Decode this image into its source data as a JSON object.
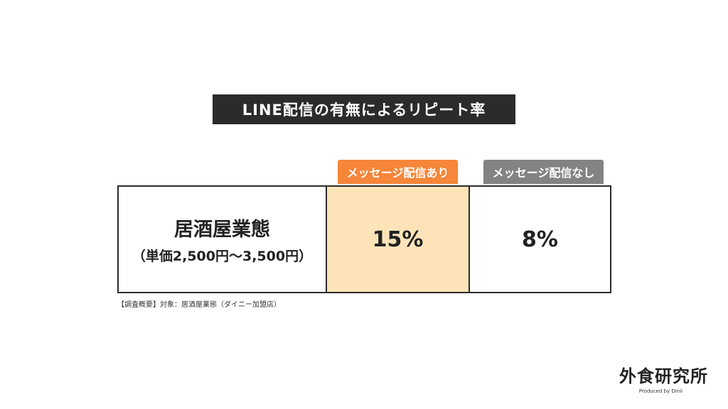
{
  "title": "LINE配信の有無によるリピート率",
  "columns": {
    "with": {
      "label": "メッセージ配信あり",
      "color": "#f5863a",
      "fill": "#fde4b8"
    },
    "without": {
      "label": "メッセージ配信なし",
      "color": "#838383",
      "fill": "#ffffff"
    }
  },
  "row": {
    "name": "居酒屋業態",
    "sub": "（単価2,500円～3,500円）",
    "with_value": "15%",
    "without_value": "8%"
  },
  "footnote": "【調査概要】対象：居酒屋業態（ダイニー加盟店）",
  "brand": {
    "name": "外食研究所",
    "sub": "Produced by Dinii"
  }
}
